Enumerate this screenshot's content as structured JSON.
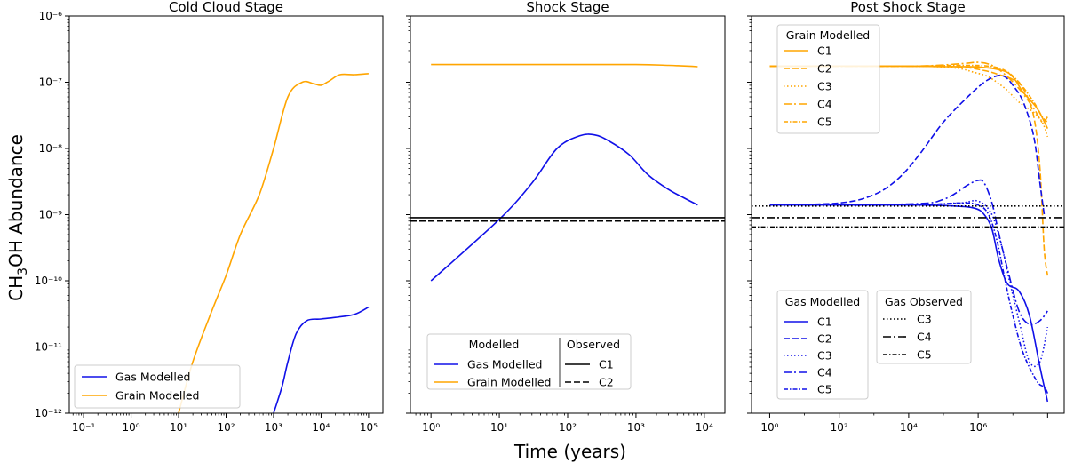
{
  "figure": {
    "ylabel": "CH3OH Abundance",
    "xlabel": "Time (years)"
  },
  "colors": {
    "gas": "#1010e8",
    "grain": "#ffa500",
    "observed": "#000000"
  },
  "chart_data": [
    {
      "type": "line",
      "title": "Cold Cloud Stage",
      "xscale": "log",
      "yscale": "log",
      "xlim": [
        0.05,
        200000
      ],
      "ylim": [
        1e-12,
        1e-06
      ],
      "xticks": [
        "10⁻¹",
        "10⁰",
        "10¹",
        "10²",
        "10³",
        "10⁴",
        "10⁵"
      ],
      "yticks": [
        "10⁻¹²",
        "10⁻¹¹",
        "10⁻¹⁰",
        "10⁻⁹",
        "10⁻⁸",
        "10⁻⁷",
        "10⁻⁶"
      ],
      "legend": {
        "position": "lower-left",
        "entries": [
          "Gas Modelled",
          "Grain Modelled"
        ]
      },
      "series": [
        {
          "name": "Gas Modelled",
          "color": "gas",
          "style": "solid",
          "x": [
            1000,
            1500,
            2000,
            3000,
            5000,
            10000,
            20000,
            50000,
            100000
          ],
          "y": [
            1e-12,
            2.5e-12,
            6e-12,
            1.6e-11,
            2.5e-11,
            2.65e-11,
            2.8e-11,
            3.1e-11,
            4e-11
          ]
        },
        {
          "name": "Grain Modelled",
          "color": "grain",
          "style": "solid",
          "x": [
            10,
            20,
            50,
            100,
            200,
            500,
            1000,
            2000,
            4000,
            7000,
            10000,
            15000,
            25000,
            50000,
            100000
          ],
          "y": [
            1e-12,
            6e-12,
            3.5e-11,
            1.2e-10,
            5e-10,
            2e-09,
            1e-08,
            6e-08,
            1e-07,
            9.5e-08,
            9e-08,
            1.05e-07,
            1.3e-07,
            1.3e-07,
            1.35e-07
          ]
        }
      ]
    },
    {
      "type": "line",
      "title": "Shock Stage",
      "xscale": "log",
      "yscale": "log",
      "xlim": [
        0.5,
        20000
      ],
      "ylim": [
        1e-12,
        1e-06
      ],
      "xticks": [
        "10⁰",
        "10¹",
        "10²",
        "10³",
        "10⁴"
      ],
      "legend": {
        "position": "lower-left",
        "column_titles": [
          "Modelled",
          "Observed"
        ],
        "entries": [
          "Gas Modelled",
          "Grain Modelled",
          "C1",
          "C2"
        ]
      },
      "series": [
        {
          "name": "Gas Modelled",
          "color": "gas",
          "style": "solid",
          "x": [
            1,
            10,
            30,
            70,
            150,
            250,
            400,
            800,
            1500,
            3000,
            5000,
            8000
          ],
          "y": [
            1e-10,
            8.5e-10,
            3e-09,
            1e-08,
            1.55e-08,
            1.6e-08,
            1.3e-08,
            8e-09,
            4e-09,
            2.4e-09,
            1.8e-09,
            1.4e-09
          ]
        },
        {
          "name": "Grain Modelled",
          "color": "grain",
          "style": "solid",
          "x": [
            1,
            10,
            100,
            1000,
            3000,
            8000
          ],
          "y": [
            1.85e-07,
            1.85e-07,
            1.85e-07,
            1.85e-07,
            1.8e-07,
            1.72e-07
          ]
        },
        {
          "name": "C1",
          "color": "observed",
          "style": "solid",
          "hline": 9e-10
        },
        {
          "name": "C2",
          "color": "observed",
          "style": "dashed",
          "hline": 8e-10
        }
      ]
    },
    {
      "type": "line",
      "title": "Post Shock Stage",
      "xscale": "log",
      "yscale": "log",
      "xlim": [
        0.003,
        3000000
      ],
      "ylim": [
        1e-12,
        1e-06
      ],
      "xticks": [
        "10⁰",
        "10²",
        "10⁴",
        "10⁶"
      ],
      "legends": [
        {
          "title": "Grain Modelled",
          "position": "upper-left",
          "entries": [
            "C1",
            "C2",
            "C3",
            "C4",
            "C5"
          ]
        },
        {
          "title": "Gas Modelled",
          "position": "lower-left",
          "entries": [
            "C1",
            "C2",
            "C3",
            "C4",
            "C5"
          ]
        },
        {
          "title": "Gas Observed",
          "position": "lower-center",
          "entries": [
            "C3",
            "C4",
            "C5"
          ]
        }
      ],
      "series": [
        {
          "group": "Grain Modelled",
          "name": "C1",
          "color": "grain",
          "style": "solid",
          "x": [
            0.01,
            100,
            1000,
            10000,
            50000,
            100000,
            200000,
            500000,
            1000000
          ],
          "y": [
            1.75e-07,
            1.75e-07,
            1.72e-07,
            1.7e-07,
            1.5e-07,
            1.2e-07,
            7e-08,
            4e-08,
            2e-08
          ]
        },
        {
          "group": "Grain Modelled",
          "name": "C2",
          "color": "grain",
          "style": "dashed",
          "x": [
            0.01,
            100,
            3000,
            15000,
            40000,
            100000,
            200000,
            400000,
            600000,
            800000,
            1000000
          ],
          "y": [
            1.75e-07,
            1.75e-07,
            1.7e-07,
            1.5e-07,
            1.3e-07,
            1.1e-07,
            8e-08,
            3e-08,
            5e-09,
            3e-10,
            1.2e-10
          ]
        },
        {
          "group": "Grain Modelled",
          "name": "C3",
          "color": "grain",
          "style": "dotted",
          "x": [
            0.01,
            100,
            2000,
            8000,
            20000,
            60000,
            150000,
            400000,
            700000,
            1000000
          ],
          "y": [
            1.75e-07,
            1.75e-07,
            1.65e-07,
            1.4e-07,
            1.2e-07,
            8e-08,
            5e-08,
            3.5e-08,
            2.5e-08,
            1.5e-08
          ]
        },
        {
          "group": "Grain Modelled",
          "name": "C4",
          "color": "grain",
          "style": "dashdot",
          "x": [
            0.01,
            100,
            3000,
            10000,
            25000,
            60000,
            150000,
            400000,
            700000,
            1000000
          ],
          "y": [
            1.75e-07,
            1.75e-07,
            1.9e-07,
            2e-07,
            1.8e-07,
            1.3e-07,
            8e-08,
            4e-08,
            2.5e-08,
            3e-08
          ]
        },
        {
          "group": "Grain Modelled",
          "name": "C5",
          "color": "grain",
          "style": "densedashdot",
          "x": [
            0.01,
            100,
            3000,
            20000,
            60000,
            150000,
            400000,
            700000,
            1000000
          ],
          "y": [
            1.75e-07,
            1.75e-07,
            1.8e-07,
            1.75e-07,
            1.5e-07,
            1e-07,
            5e-08,
            3e-08,
            2.5e-08
          ]
        },
        {
          "group": "Gas Modelled",
          "name": "C1",
          "color": "gas",
          "style": "solid",
          "x": [
            0.01,
            100,
            2000,
            8000,
            15000,
            25000,
            40000,
            70000,
            150000,
            300000,
            600000,
            1000000
          ],
          "y": [
            1.4e-09,
            1.4e-09,
            1.35e-09,
            1.25e-09,
            1e-09,
            6e-10,
            2e-10,
            9e-11,
            7e-11,
            3e-11,
            5e-12,
            1.5e-12
          ]
        },
        {
          "group": "Gas Modelled",
          "name": "C2",
          "color": "gas",
          "style": "dashed",
          "x": [
            0.01,
            1,
            10,
            50,
            200,
            1000,
            5000,
            15000,
            35000,
            60000,
            100000,
            200000,
            400000,
            600000,
            800000
          ],
          "y": [
            1.4e-09,
            1.5e-09,
            2e-09,
            3.5e-09,
            8e-09,
            2.5e-08,
            6e-08,
            1e-07,
            1.25e-07,
            1.2e-07,
            9e-08,
            5e-08,
            1.5e-08,
            3e-09,
            1e-09
          ]
        },
        {
          "group": "Gas Modelled",
          "name": "C3",
          "color": "gas",
          "style": "dotted",
          "x": [
            0.01,
            100,
            3000,
            10000,
            25000,
            50000,
            80000,
            150000,
            300000,
            600000,
            1000000
          ],
          "y": [
            1.4e-09,
            1.4e-09,
            1.5e-09,
            1.6e-09,
            1e-09,
            3e-10,
            1e-10,
            2.5e-11,
            6e-12,
            6e-12,
            2e-11
          ]
        },
        {
          "group": "Gas Modelled",
          "name": "C4",
          "color": "gas",
          "style": "dashdot",
          "x": [
            0.01,
            100,
            1000,
            5000,
            10000,
            15000,
            25000,
            40000,
            70000,
            150000,
            300000,
            600000,
            1000000
          ],
          "y": [
            1.4e-09,
            1.45e-09,
            1.7e-09,
            2.8e-09,
            3.3e-09,
            3e-09,
            1.5e-09,
            5e-10,
            1.5e-10,
            3.5e-11,
            2.2e-11,
            2.5e-11,
            3.5e-11
          ]
        },
        {
          "group": "Gas Modelled",
          "name": "C5",
          "color": "gas",
          "style": "densedashdot",
          "x": [
            0.01,
            100,
            3000,
            10000,
            20000,
            35000,
            60000,
            100000,
            200000,
            500000,
            800000,
            1000000
          ],
          "y": [
            1.4e-09,
            1.4e-09,
            1.5e-09,
            1.4e-09,
            1e-09,
            4e-10,
            1e-10,
            3e-11,
            8e-12,
            3e-12,
            2.5e-12,
            2e-12
          ]
        },
        {
          "group": "Gas Observed",
          "name": "C3",
          "color": "observed",
          "style": "dotted",
          "hline": 1.35e-09
        },
        {
          "group": "Gas Observed",
          "name": "C4",
          "color": "observed",
          "style": "dashdot",
          "hline": 9e-10
        },
        {
          "group": "Gas Observed",
          "name": "C5",
          "color": "observed",
          "style": "densedashdot",
          "hline": 6.5e-10
        }
      ]
    }
  ]
}
